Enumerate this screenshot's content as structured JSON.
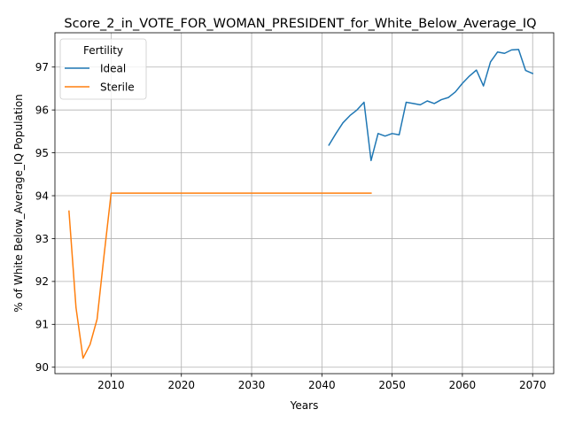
{
  "chart_data": {
    "type": "line",
    "title": "Score_2_in_VOTE_FOR_WOMAN_PRESIDENT_for_White_Below_Average_IQ",
    "xlabel": "Years",
    "ylabel": "% of White Below_Average_IQ Population",
    "xlim": [
      2002,
      2073
    ],
    "ylim": [
      89.85,
      97.8
    ],
    "x_ticks": [
      2010,
      2020,
      2030,
      2040,
      2050,
      2060,
      2070
    ],
    "y_ticks": [
      90,
      91,
      92,
      93,
      94,
      95,
      96,
      97
    ],
    "grid": true,
    "legend": {
      "title": "Fertility",
      "placement": "top-left"
    },
    "series": [
      {
        "name": "Ideal",
        "color": "#1f77b4",
        "x": [
          2041,
          2042,
          2043,
          2044,
          2045,
          2046,
          2047,
          2048,
          2049,
          2050,
          2051,
          2052,
          2053,
          2054,
          2055,
          2056,
          2057,
          2058,
          2059,
          2060,
          2061,
          2062,
          2063,
          2064,
          2065,
          2066,
          2067,
          2068,
          2069,
          2070
        ],
        "y": [
          95.18,
          95.45,
          95.7,
          95.87,
          96.0,
          96.18,
          94.82,
          95.45,
          95.39,
          95.45,
          95.42,
          96.18,
          96.15,
          96.12,
          96.21,
          96.15,
          96.24,
          96.29,
          96.42,
          96.62,
          96.79,
          96.93,
          96.56,
          97.12,
          97.35,
          97.32,
          97.4,
          97.41,
          96.92,
          96.85
        ]
      },
      {
        "name": "Sterile",
        "color": "#ff7f0e",
        "x": [
          2004,
          2005,
          2006,
          2007,
          2008,
          2009,
          2010,
          2011,
          2012,
          2013,
          2014,
          2015,
          2016,
          2017,
          2018,
          2019,
          2020,
          2021,
          2022,
          2023,
          2024,
          2025,
          2026,
          2027,
          2028,
          2029,
          2030,
          2031,
          2032,
          2033,
          2034,
          2035,
          2036,
          2037,
          2038,
          2039,
          2040,
          2041,
          2042,
          2043,
          2044,
          2045,
          2046,
          2047
        ],
        "y": [
          93.64,
          91.39,
          90.21,
          90.53,
          91.12,
          92.62,
          94.06,
          94.06,
          94.06,
          94.06,
          94.06,
          94.06,
          94.06,
          94.06,
          94.06,
          94.06,
          94.06,
          94.06,
          94.06,
          94.06,
          94.06,
          94.06,
          94.06,
          94.06,
          94.06,
          94.06,
          94.06,
          94.06,
          94.06,
          94.06,
          94.06,
          94.06,
          94.06,
          94.06,
          94.06,
          94.06,
          94.06,
          94.06,
          94.06,
          94.06,
          94.06,
          94.06,
          94.06,
          94.06
        ]
      }
    ]
  }
}
